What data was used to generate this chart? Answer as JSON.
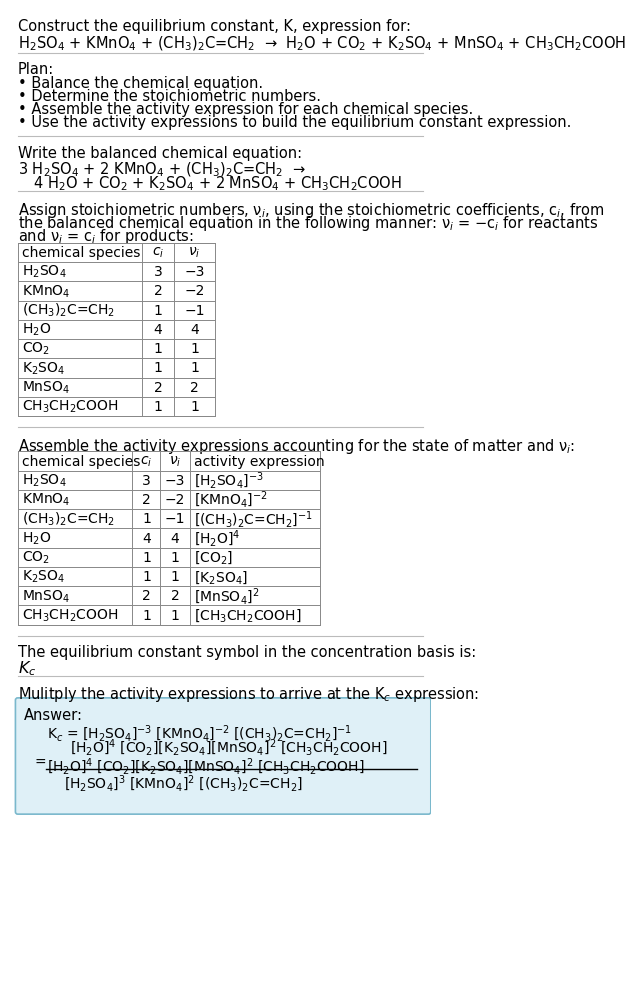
{
  "bg_color": "#ffffff",
  "title_line1": "Construct the equilibrium constant, K, expression for:",
  "reaction_unbalanced": "H$_2$SO$_4$ + KMnO$_4$ + (CH$_3$)$_2$C=CH$_2$  →  H$_2$O + CO$_2$ + K$_2$SO$_4$ + MnSO$_4$ + CH$_3$CH$_2$COOH",
  "plan_header": "Plan:",
  "plan_items": [
    "• Balance the chemical equation.",
    "• Determine the stoichiometric numbers.",
    "• Assemble the activity expression for each chemical species.",
    "• Use the activity expressions to build the equilibrium constant expression."
  ],
  "balanced_header": "Write the balanced chemical equation:",
  "balanced_line1": "3 H$_2$SO$_4$ + 2 KMnO$_4$ + (CH$_3$)$_2$C=CH$_2$  →",
  "balanced_line2": "  4 H$_2$O + CO$_2$ + K$_2$SO$_4$ + 2 MnSO$_4$ + CH$_3$CH$_2$COOH",
  "stoich_header_lines": [
    "Assign stoichiometric numbers, ν$_i$, using the stoichiometric coefficients, c$_i$, from",
    "the balanced chemical equation in the following manner: ν$_i$ = −c$_i$ for reactants",
    "and ν$_i$ = c$_i$ for products:"
  ],
  "table1_headers": [
    "chemical species",
    "c$_i$",
    "ν$_i$"
  ],
  "table1_data": [
    [
      "H$_2$SO$_4$",
      "3",
      "−3"
    ],
    [
      "KMnO$_4$",
      "2",
      "−2"
    ],
    [
      "(CH$_3$)$_2$C=CH$_2$",
      "1",
      "−1"
    ],
    [
      "H$_2$O",
      "4",
      "4"
    ],
    [
      "CO$_2$",
      "1",
      "1"
    ],
    [
      "K$_2$SO$_4$",
      "1",
      "1"
    ],
    [
      "MnSO$_4$",
      "2",
      "2"
    ],
    [
      "CH$_3$CH$_2$COOH",
      "1",
      "1"
    ]
  ],
  "activity_header": "Assemble the activity expressions accounting for the state of matter and ν$_i$:",
  "table2_headers": [
    "chemical species",
    "c$_i$",
    "ν$_i$",
    "activity expression"
  ],
  "table2_data": [
    [
      "H$_2$SO$_4$",
      "3",
      "−3",
      "[H$_2$SO$_4$]$^{-3}$"
    ],
    [
      "KMnO$_4$",
      "2",
      "−2",
      "[KMnO$_4$]$^{-2}$"
    ],
    [
      "(CH$_3$)$_2$C=CH$_2$",
      "1",
      "−1",
      "[(CH$_3$)$_2$C=CH$_2$]$^{-1}$"
    ],
    [
      "H$_2$O",
      "4",
      "4",
      "[H$_2$O]$^4$"
    ],
    [
      "CO$_2$",
      "1",
      "1",
      "[CO$_2$]"
    ],
    [
      "K$_2$SO$_4$",
      "1",
      "1",
      "[K$_2$SO$_4$]"
    ],
    [
      "MnSO$_4$",
      "2",
      "2",
      "[MnSO$_4$]$^2$"
    ],
    [
      "CH$_3$CH$_2$COOH",
      "1",
      "1",
      "[CH$_3$CH$_2$COOH]"
    ]
  ],
  "kc_header": "The equilibrium constant symbol in the concentration basis is:",
  "kc_symbol": "K$_c$",
  "multiply_header": "Mulitply the activity expressions to arrive at the K$_c$ expression:",
  "answer_box_color": "#dff0f7",
  "answer_border_color": "#7ab8cc",
  "answer_label": "Answer:",
  "kc_expr_line1": "K$_c$ = [H$_2$SO$_4$]$^{-3}$ [KMnO$_4$]$^{-2}$ [(CH$_3$)$_2$C=CH$_2$]$^{-1}$",
  "kc_expr_line2": "          [H$_2$O]$^4$ [CO$_2$][K$_2$SO$_4$][MnSO$_4$]$^2$ [CH$_3$CH$_2$COOH]",
  "kc_expr_num": "[H$_2$O]$^4$ [CO$_2$][K$_2$SO$_4$][MnSO$_4$]$^2$ [CH$_3$CH$_2$COOH]",
  "kc_expr_den": "[H$_2$SO$_4$]$^3$ [KMnO$_4$]$^2$ [(CH$_3$)$_2$C=CH$_2$]",
  "font_size_body": 10.5,
  "font_size_table": 10.0
}
